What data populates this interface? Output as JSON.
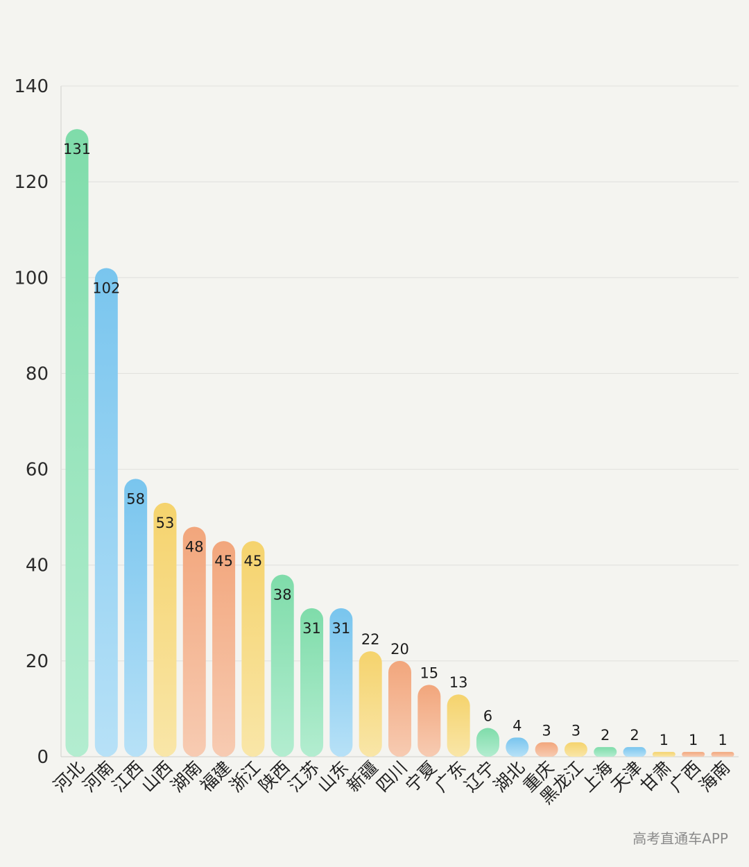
{
  "watermark": "高考直通车APP",
  "colors": {
    "green": [
      "#7fdcaa",
      "#b3edd0"
    ],
    "blue": [
      "#79c5ee",
      "#b7e1f7"
    ],
    "yellow": [
      "#f5d36d",
      "#f9e6a8"
    ],
    "orange": [
      "#f2a67c",
      "#f7cbb2"
    ],
    "grid": "#dfdfdc",
    "axis": "#cfcfcc"
  },
  "chart_data": {
    "type": "bar",
    "title": "",
    "xlabel": "",
    "ylabel": "",
    "ylim": [
      0,
      140
    ],
    "yticks": [
      0,
      20,
      40,
      60,
      80,
      100,
      120,
      140
    ],
    "grid": true,
    "categories": [
      "河北",
      "河南",
      "江西",
      "山西",
      "湖南",
      "福建",
      "浙江",
      "陕西",
      "江苏",
      "山东",
      "新疆",
      "四川",
      "宁夏",
      "广东",
      "辽宁",
      "湖北",
      "重庆",
      "黑龙江",
      "上海",
      "天津",
      "甘肃",
      "广西",
      "海南"
    ],
    "values": [
      131,
      102,
      58,
      53,
      48,
      45,
      45,
      38,
      31,
      31,
      22,
      20,
      15,
      13,
      6,
      4,
      3,
      3,
      2,
      2,
      1,
      1,
      1
    ],
    "bar_colors": [
      "green",
      "blue",
      "blue",
      "yellow",
      "orange",
      "orange",
      "yellow",
      "green",
      "green",
      "blue",
      "yellow",
      "orange",
      "orange",
      "yellow",
      "green",
      "blue",
      "orange",
      "yellow",
      "green",
      "blue",
      "yellow",
      "orange",
      "orange"
    ]
  }
}
